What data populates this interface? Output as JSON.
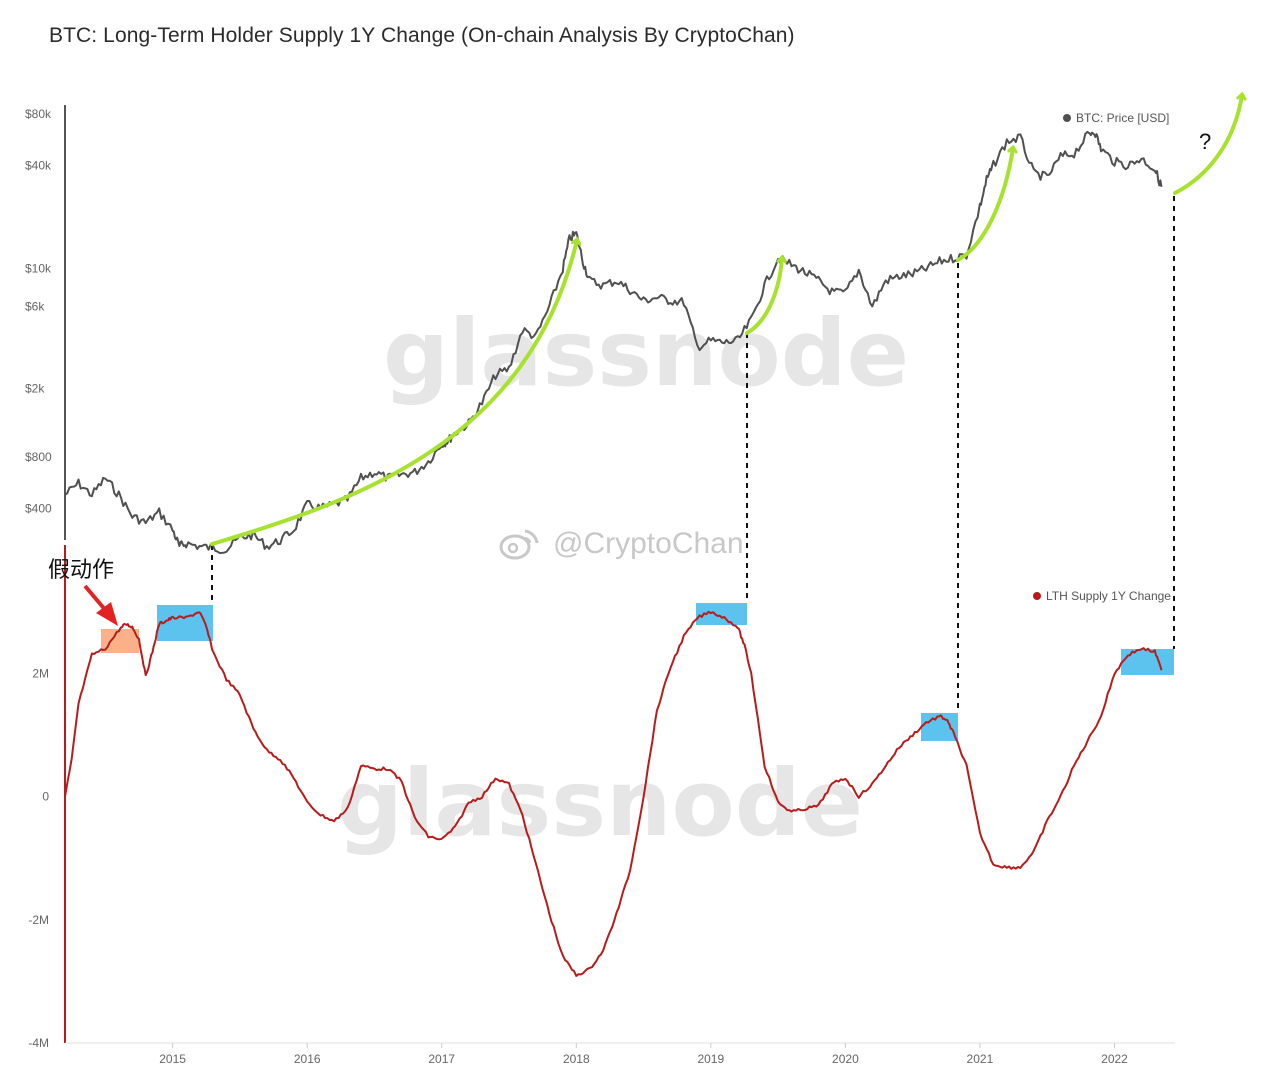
{
  "title": "BTC: Long-Term Holder Supply 1Y Change (On-chain Analysis By CryptoChan)",
  "watermark": {
    "brand": "glassnode",
    "social_handle": "@CryptoChan"
  },
  "colors": {
    "price_line": "#505050",
    "lth_line": "#b71c1c",
    "arrow": "#a6e22e",
    "highlight_blue": "#5cc3ee",
    "highlight_orange": "#f9a374",
    "annotation_arrow": "#e32323"
  },
  "annotations": {
    "fake_move_label": "假动作",
    "question_mark": "?"
  },
  "chart_data": [
    {
      "type": "line",
      "name": "price-panel",
      "legend": [
        "BTC: Price [USD]"
      ],
      "legend_position": "top-right",
      "y_scale": "log",
      "ylim": [
        200,
        90000
      ],
      "x_range": [
        2014.2,
        2022.45
      ],
      "y_ticks": [
        {
          "value": 80000,
          "label": "$80k"
        },
        {
          "value": 40000,
          "label": "$40k"
        },
        {
          "value": 10000,
          "label": "$10k"
        },
        {
          "value": 6000,
          "label": "$6k"
        },
        {
          "value": 2000,
          "label": "$2k"
        },
        {
          "value": 800,
          "label": "$800"
        },
        {
          "value": 400,
          "label": "$400"
        }
      ],
      "series": [
        {
          "name": "BTC: Price [USD]",
          "x": [
            2014.2,
            2014.3,
            2014.4,
            2014.5,
            2014.6,
            2014.7,
            2014.8,
            2014.9,
            2015.0,
            2015.05,
            2015.1,
            2015.2,
            2015.3,
            2015.4,
            2015.5,
            2015.6,
            2015.7,
            2015.8,
            2015.9,
            2016.0,
            2016.1,
            2016.2,
            2016.3,
            2016.4,
            2016.5,
            2016.6,
            2016.7,
            2016.8,
            2016.9,
            2017.0,
            2017.05,
            2017.1,
            2017.2,
            2017.3,
            2017.4,
            2017.5,
            2017.6,
            2017.7,
            2017.8,
            2017.9,
            2017.95,
            2018.0,
            2018.05,
            2018.1,
            2018.2,
            2018.3,
            2018.4,
            2018.5,
            2018.6,
            2018.7,
            2018.8,
            2018.9,
            2019.0,
            2019.1,
            2019.2,
            2019.3,
            2019.4,
            2019.5,
            2019.6,
            2019.7,
            2019.8,
            2019.9,
            2020.0,
            2020.1,
            2020.2,
            2020.3,
            2020.4,
            2020.5,
            2020.6,
            2020.7,
            2020.8,
            2020.9,
            2021.0,
            2021.05,
            2021.1,
            2021.2,
            2021.3,
            2021.4,
            2021.5,
            2021.6,
            2021.7,
            2021.8,
            2021.85,
            2021.9,
            2022.0,
            2022.1,
            2022.2,
            2022.3,
            2022.35
          ],
          "values": [
            480,
            560,
            480,
            600,
            480,
            360,
            330,
            380,
            300,
            240,
            250,
            240,
            235,
            230,
            270,
            280,
            240,
            260,
            300,
            420,
            400,
            420,
            450,
            600,
            650,
            600,
            630,
            650,
            750,
            950,
            1000,
            1100,
            1250,
            1650,
            2400,
            2600,
            4400,
            4000,
            6000,
            10000,
            15000,
            16000,
            11000,
            8500,
            8000,
            8500,
            7500,
            6500,
            6800,
            6500,
            6400,
            3500,
            3800,
            3700,
            3800,
            5000,
            8000,
            11500,
            10500,
            9500,
            8500,
            7300,
            7200,
            9800,
            6000,
            8500,
            9000,
            9300,
            10000,
            11000,
            11500,
            12000,
            23000,
            33000,
            40000,
            55000,
            58000,
            36000,
            34000,
            45000,
            47000,
            60000,
            64000,
            50000,
            42000,
            40000,
            44000,
            38000,
            30000
          ]
        }
      ]
    },
    {
      "type": "line",
      "name": "lth-panel",
      "legend": [
        "LTH Supply 1Y Change"
      ],
      "legend_position": "top-right",
      "ylim": [
        -4000000,
        4000000
      ],
      "x_range": [
        2014.2,
        2022.45
      ],
      "x_ticks": [
        {
          "value": 2015,
          "label": "2015"
        },
        {
          "value": 2016,
          "label": "2016"
        },
        {
          "value": 2017,
          "label": "2017"
        },
        {
          "value": 2018,
          "label": "2018"
        },
        {
          "value": 2019,
          "label": "2019"
        },
        {
          "value": 2020,
          "label": "2020"
        },
        {
          "value": 2021,
          "label": "2021"
        },
        {
          "value": 2022,
          "label": "2022"
        }
      ],
      "y_ticks": [
        {
          "value": 2000000,
          "label": "2M"
        },
        {
          "value": 0,
          "label": "0"
        },
        {
          "value": -2000000,
          "label": "-2M"
        },
        {
          "value": -4000000,
          "label": "-4M"
        }
      ],
      "series": [
        {
          "name": "LTH Supply 1Y Change",
          "x": [
            2014.2,
            2014.25,
            2014.3,
            2014.4,
            2014.5,
            2014.6,
            2014.65,
            2014.7,
            2014.75,
            2014.8,
            2014.85,
            2014.9,
            2014.95,
            2015.0,
            2015.1,
            2015.2,
            2015.25,
            2015.3,
            2015.4,
            2015.5,
            2015.6,
            2015.7,
            2015.8,
            2015.9,
            2016.0,
            2016.1,
            2016.2,
            2016.3,
            2016.4,
            2016.5,
            2016.6,
            2016.7,
            2016.8,
            2016.9,
            2017.0,
            2017.1,
            2017.2,
            2017.3,
            2017.4,
            2017.5,
            2017.6,
            2017.7,
            2017.8,
            2017.9,
            2018.0,
            2018.1,
            2018.2,
            2018.3,
            2018.4,
            2018.5,
            2018.6,
            2018.7,
            2018.8,
            2018.9,
            2019.0,
            2019.1,
            2019.2,
            2019.25,
            2019.3,
            2019.4,
            2019.5,
            2019.6,
            2019.7,
            2019.8,
            2019.9,
            2020.0,
            2020.1,
            2020.2,
            2020.3,
            2020.4,
            2020.5,
            2020.6,
            2020.7,
            2020.75,
            2020.8,
            2020.9,
            2021.0,
            2021.1,
            2021.2,
            2021.3,
            2021.4,
            2021.5,
            2021.6,
            2021.7,
            2021.8,
            2021.9,
            2022.0,
            2022.1,
            2022.2,
            2022.3,
            2022.35
          ],
          "values": [
            0,
            600000,
            1500000,
            2300000,
            2400000,
            2700000,
            2800000,
            2750000,
            2550000,
            1950000,
            2350000,
            2800000,
            2850000,
            2900000,
            2900000,
            3000000,
            2750000,
            2350000,
            1900000,
            1650000,
            1100000,
            750000,
            600000,
            300000,
            -100000,
            -300000,
            -400000,
            -200000,
            500000,
            450000,
            450000,
            250000,
            -350000,
            -650000,
            -700000,
            -500000,
            -100000,
            0,
            300000,
            200000,
            -300000,
            -1100000,
            -1900000,
            -2600000,
            -2900000,
            -2800000,
            -2500000,
            -1900000,
            -1200000,
            0,
            1400000,
            2100000,
            2600000,
            2900000,
            3000000,
            2900000,
            2750000,
            2450000,
            2000000,
            500000,
            -100000,
            -250000,
            -200000,
            -150000,
            200000,
            300000,
            0,
            200000,
            500000,
            800000,
            1000000,
            1200000,
            1300000,
            1250000,
            1050000,
            500000,
            -600000,
            -1100000,
            -1150000,
            -1150000,
            -900000,
            -400000,
            0,
            500000,
            900000,
            1300000,
            2000000,
            2300000,
            2400000,
            2350000,
            2050000
          ]
        }
      ]
    }
  ]
}
